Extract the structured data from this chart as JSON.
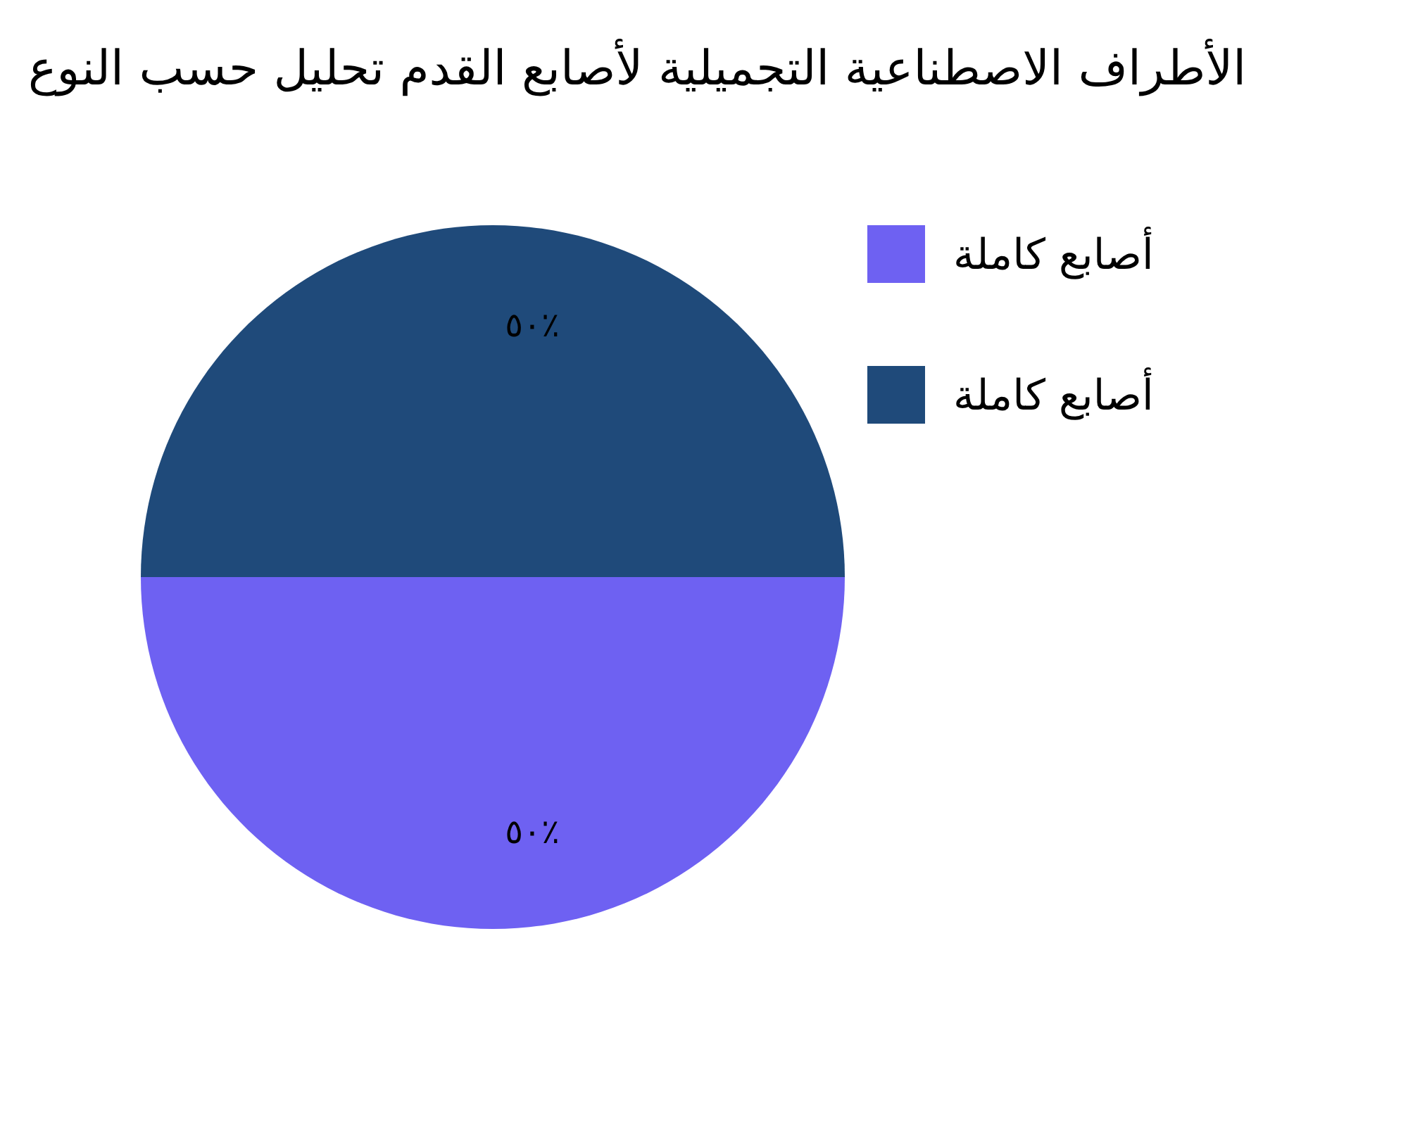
{
  "chart_data": {
    "type": "pie",
    "title": "الأطراف الاصطناعية التجميلية لأصابع القدم تحليل حسب النوع",
    "categories": [
      "أصابع كاملة",
      "أصابع كاملة"
    ],
    "values": [
      50,
      50
    ],
    "colors": [
      "#6e61f2",
      "#1f4a7a"
    ],
    "value_labels": [
      "٥٠٪",
      "٥٠٪"
    ],
    "legend": "right"
  }
}
